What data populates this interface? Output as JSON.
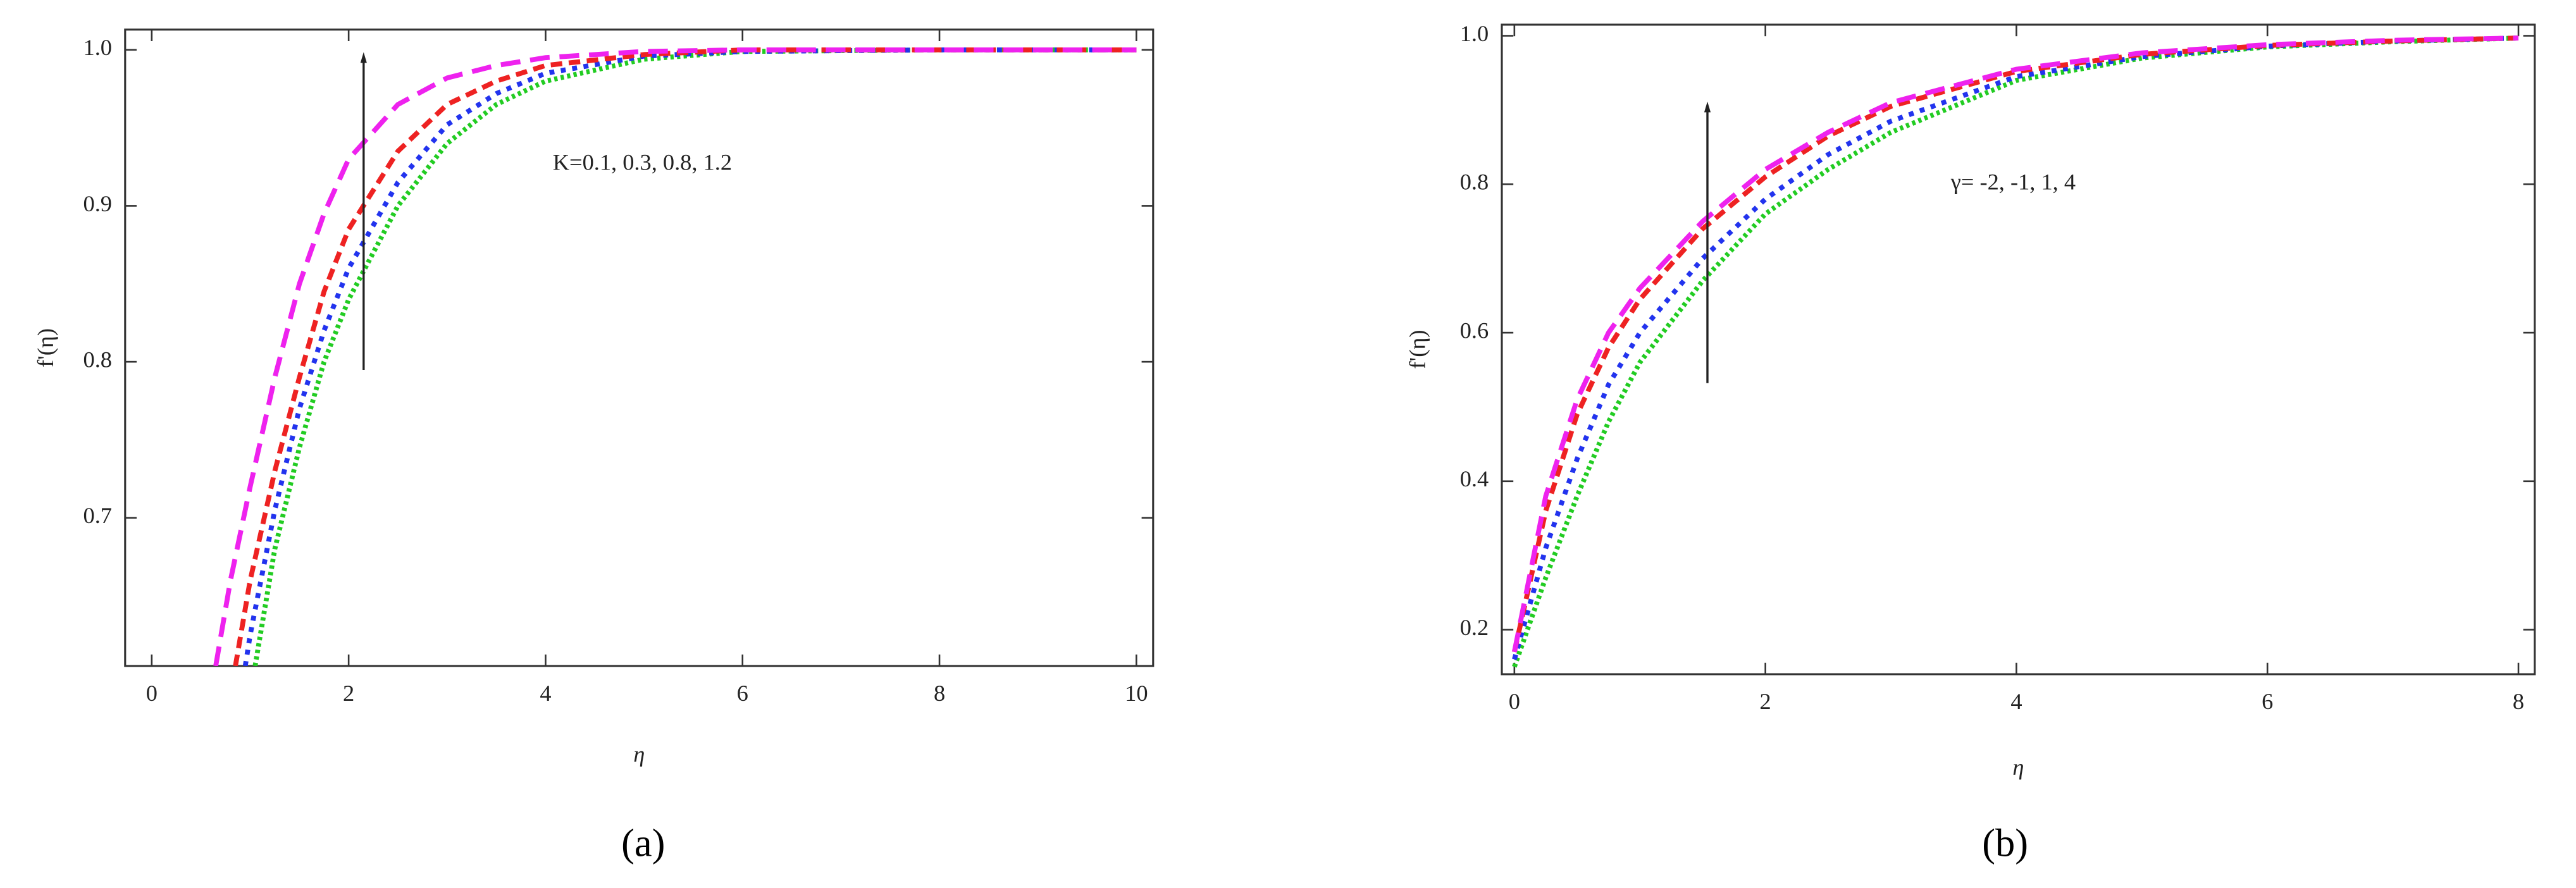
{
  "chart_data": [
    {
      "type": "line",
      "caption": "(a)",
      "x_label": "η",
      "y_label": "f'(η)",
      "annotation": "K=0.1, 0.3, 0.8, 1.2",
      "xlim": [
        -0.27,
        10.17
      ],
      "ylim": [
        0.605,
        1.013
      ],
      "xticks": [
        0,
        2,
        4,
        6,
        8,
        10
      ],
      "yticks": [
        0.7,
        0.8,
        0.9,
        {
          "value": 1,
          "label": "1.0"
        }
      ],
      "series": [
        {
          "color": "#22cc22",
          "linestyle": "dotted",
          "x": [
            1.05,
            1.25,
            1.5,
            1.75,
            2,
            2.5,
            3,
            3.5,
            4,
            5,
            6,
            8,
            10
          ],
          "values": [
            0.605,
            0.68,
            0.745,
            0.8,
            0.84,
            0.9,
            0.94,
            0.965,
            0.98,
            0.994,
            0.999,
            1,
            1
          ]
        },
        {
          "color": "#2233ee",
          "linestyle": "dotted-wide",
          "x": [
            0.95,
            1,
            1.25,
            1.5,
            1.75,
            2,
            2.5,
            3,
            3.5,
            4,
            5,
            6,
            8,
            10
          ],
          "values": [
            0.605,
            0.625,
            0.705,
            0.77,
            0.82,
            0.86,
            0.915,
            0.952,
            0.972,
            0.985,
            0.996,
            0.999,
            1,
            1
          ]
        },
        {
          "color": "#ee2222",
          "linestyle": "dashed",
          "x": [
            0.85,
            1,
            1.25,
            1.5,
            1.75,
            2,
            2.5,
            3,
            3.5,
            4,
            5,
            6,
            8,
            10
          ],
          "values": [
            0.605,
            0.66,
            0.73,
            0.79,
            0.845,
            0.885,
            0.935,
            0.965,
            0.98,
            0.99,
            0.997,
            1,
            1,
            1
          ]
        },
        {
          "color": "#ee22ee",
          "linestyle": "long-dashed",
          "x": [
            0.65,
            0.8,
            1,
            1.25,
            1.5,
            1.75,
            2,
            2.5,
            3,
            3.5,
            4,
            5,
            6,
            8,
            10
          ],
          "values": [
            0.605,
            0.66,
            0.72,
            0.79,
            0.85,
            0.895,
            0.93,
            0.965,
            0.982,
            0.99,
            0.995,
            0.999,
            1,
            1,
            1
          ]
        }
      ]
    },
    {
      "type": "line",
      "caption": "(b)",
      "x_label": "η",
      "y_label": "f'(η)",
      "annotation": "γ= -2, -1, 1, 4",
      "xlim": [
        -0.1,
        8.13
      ],
      "ylim": [
        0.14,
        1.015
      ],
      "xticks": [
        0,
        2,
        4,
        6,
        8
      ],
      "yticks": [
        0.2,
        0.4,
        0.6,
        0.8,
        {
          "value": 1,
          "label": "1.0"
        }
      ],
      "series": [
        {
          "color": "#22cc22",
          "linestyle": "dotted",
          "x": [
            0,
            0.25,
            0.5,
            0.75,
            1,
            1.5,
            2,
            2.5,
            3,
            4,
            5,
            6,
            7,
            8
          ],
          "values": [
            0.15,
            0.27,
            0.38,
            0.48,
            0.56,
            0.67,
            0.76,
            0.82,
            0.87,
            0.94,
            0.97,
            0.985,
            0.992,
            0.997
          ]
        },
        {
          "color": "#2233ee",
          "linestyle": "dotted-wide",
          "x": [
            0,
            0.25,
            0.5,
            0.75,
            1,
            1.5,
            2,
            2.5,
            3,
            4,
            5,
            6,
            7,
            8
          ],
          "values": [
            0.16,
            0.31,
            0.43,
            0.53,
            0.6,
            0.7,
            0.78,
            0.84,
            0.885,
            0.945,
            0.972,
            0.986,
            0.993,
            0.997
          ]
        },
        {
          "color": "#ee2222",
          "linestyle": "dashed",
          "x": [
            0,
            0.25,
            0.5,
            0.75,
            1,
            1.5,
            2,
            2.5,
            3,
            4,
            5,
            6,
            7,
            8
          ],
          "values": [
            0.17,
            0.36,
            0.49,
            0.58,
            0.645,
            0.74,
            0.81,
            0.865,
            0.905,
            0.952,
            0.975,
            0.987,
            0.993,
            0.997
          ]
        },
        {
          "color": "#ee22ee",
          "linestyle": "long-dashed",
          "x": [
            0,
            0.25,
            0.5,
            0.75,
            1,
            1.5,
            2,
            2.5,
            3,
            4,
            5,
            6,
            7,
            8
          ],
          "values": [
            0.17,
            0.38,
            0.51,
            0.6,
            0.66,
            0.75,
            0.82,
            0.87,
            0.91,
            0.955,
            0.977,
            0.988,
            0.994,
            0.997
          ]
        }
      ]
    }
  ]
}
